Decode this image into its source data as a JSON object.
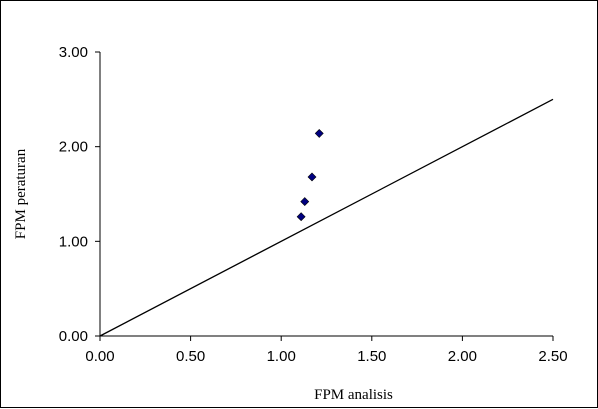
{
  "chart_data": {
    "type": "scatter",
    "title": "",
    "xlabel": "FPM  analisis",
    "ylabel": "FPM  peraturan",
    "xlim": [
      0,
      2.5
    ],
    "ylim": [
      0,
      3
    ],
    "x_ticks": [
      "0.00",
      "0.50",
      "1.00",
      "1.50",
      "2.00",
      "2.50"
    ],
    "y_ticks": [
      "0.00",
      "1.00",
      "2.00",
      "3.00"
    ],
    "grid": false,
    "legend": "none",
    "marker": "diamond",
    "marker_color": "#000080",
    "series": [
      {
        "points": [
          {
            "x": 1.11,
            "y": 1.26
          },
          {
            "x": 1.13,
            "y": 1.42
          },
          {
            "x": 1.17,
            "y": 1.68
          },
          {
            "x": 1.21,
            "y": 2.14
          }
        ]
      }
    ],
    "reference_line": {
      "from": [
        0,
        0
      ],
      "to": [
        2.5,
        2.5
      ],
      "color": "#000000"
    }
  }
}
